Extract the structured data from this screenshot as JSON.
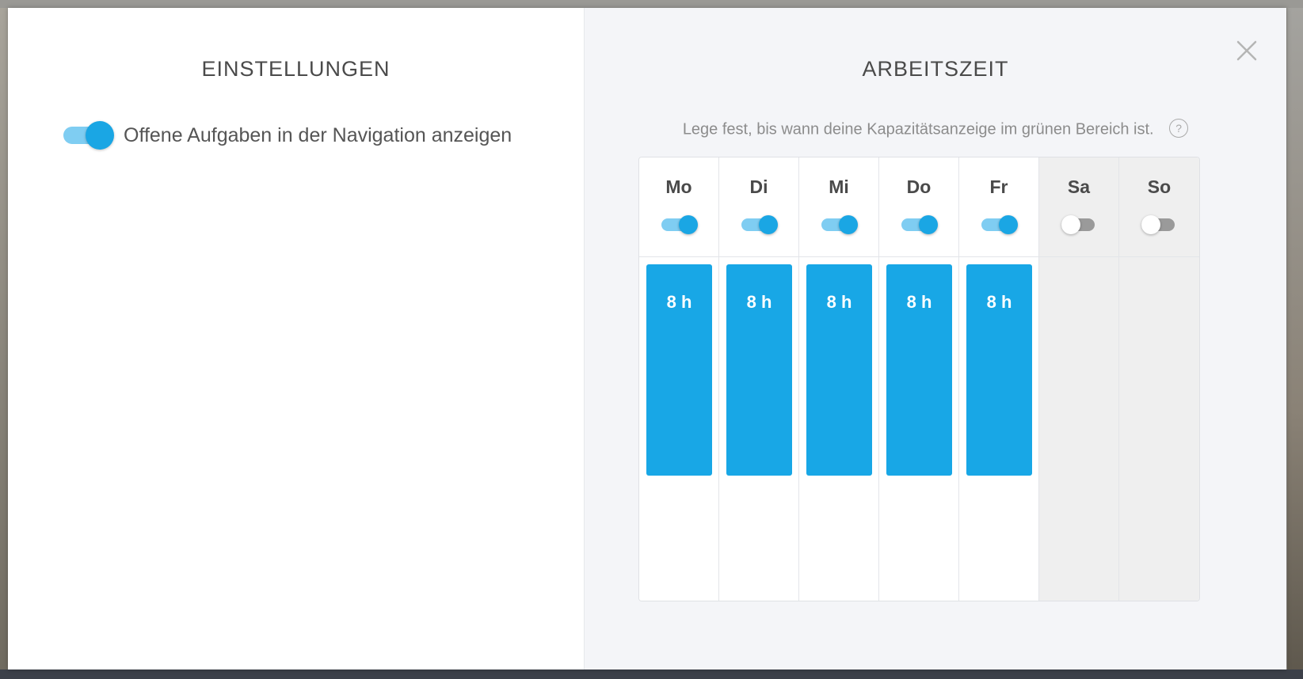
{
  "settings": {
    "title": "EINSTELLUNGEN",
    "show_open_tasks": {
      "label": "Offene Aufgaben in der Navigation anzeigen",
      "enabled": true
    }
  },
  "worktime": {
    "title": "ARBEITSZEIT",
    "subtitle": "Lege fest, bis wann deine Kapazitätsanzeige im grünen Bereich ist.",
    "help_icon_text": "?",
    "max_hours": 8,
    "days": [
      {
        "name": "Mo",
        "enabled": true,
        "hours": 8,
        "hours_label": "8 h"
      },
      {
        "name": "Di",
        "enabled": true,
        "hours": 8,
        "hours_label": "8 h"
      },
      {
        "name": "Mi",
        "enabled": true,
        "hours": 8,
        "hours_label": "8 h"
      },
      {
        "name": "Do",
        "enabled": true,
        "hours": 8,
        "hours_label": "8 h"
      },
      {
        "name": "Fr",
        "enabled": true,
        "hours": 8,
        "hours_label": "8 h"
      },
      {
        "name": "Sa",
        "enabled": false,
        "hours": 0,
        "hours_label": ""
      },
      {
        "name": "So",
        "enabled": false,
        "hours": 0,
        "hours_label": ""
      }
    ]
  },
  "colors": {
    "accent": "#18a7e6",
    "toggle_track_on": "#7fcdf2",
    "toggle_track_off": "#9a9a9a",
    "day_off_background": "#efefef"
  },
  "icons": {
    "close": "close-icon",
    "help": "help-icon"
  }
}
